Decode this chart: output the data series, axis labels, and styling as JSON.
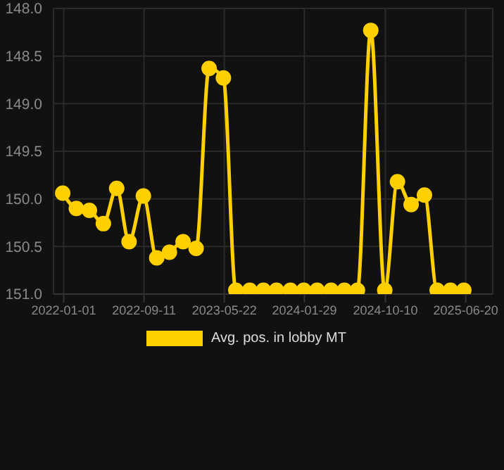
{
  "chart_data": {
    "type": "line",
    "x": [
      "2021-12-29",
      "2022-02-10",
      "2022-03-23",
      "2022-05-06",
      "2022-06-17",
      "2022-07-26",
      "2022-09-09",
      "2022-10-21",
      "2022-11-30",
      "2023-01-12",
      "2023-02-22",
      "2023-04-04",
      "2023-05-19",
      "2023-06-27",
      "2023-08-10",
      "2023-09-22",
      "2023-11-02",
      "2023-12-16",
      "2024-01-27",
      "2024-03-09",
      "2024-04-22",
      "2024-06-03",
      "2024-07-14",
      "2024-08-25",
      "2024-10-08",
      "2024-11-17",
      "2024-12-30",
      "2025-02-10",
      "2025-03-22",
      "2025-05-03",
      "2025-06-14"
    ],
    "series": [
      {
        "name": "Avg. pos. in lobby MT",
        "color": "#ffd000",
        "values": [
          149.94,
          150.1,
          150.12,
          150.26,
          149.89,
          150.45,
          149.97,
          150.62,
          150.56,
          150.45,
          150.52,
          148.63,
          148.73,
          150.96,
          150.96,
          150.96,
          150.96,
          150.96,
          150.96,
          150.96,
          150.96,
          150.96,
          150.96,
          148.23,
          150.96,
          149.82,
          150.06,
          149.96,
          150.96,
          150.96,
          150.96
        ]
      }
    ],
    "ylim": [
      151.0,
      148.0
    ],
    "yticks": [
      {
        "value": 148,
        "label": "148.0"
      },
      {
        "value": 148.5,
        "label": "148.5"
      },
      {
        "value": 149,
        "label": "149.0"
      },
      {
        "value": 149.5,
        "label": "149.5"
      },
      {
        "value": 150,
        "label": "150.0"
      },
      {
        "value": 150.5,
        "label": "150.5"
      },
      {
        "value": 151,
        "label": "151.0"
      }
    ],
    "xlim": [
      "2021-11-30",
      "2025-09-13"
    ],
    "xticks": [
      "2022-01-01",
      "2022-09-11",
      "2023-05-22",
      "2024-01-29",
      "2024-10-10",
      "2025-06-20"
    ],
    "grid": true,
    "legend": "bottom",
    "marker": "circle",
    "line_style": "solid"
  }
}
